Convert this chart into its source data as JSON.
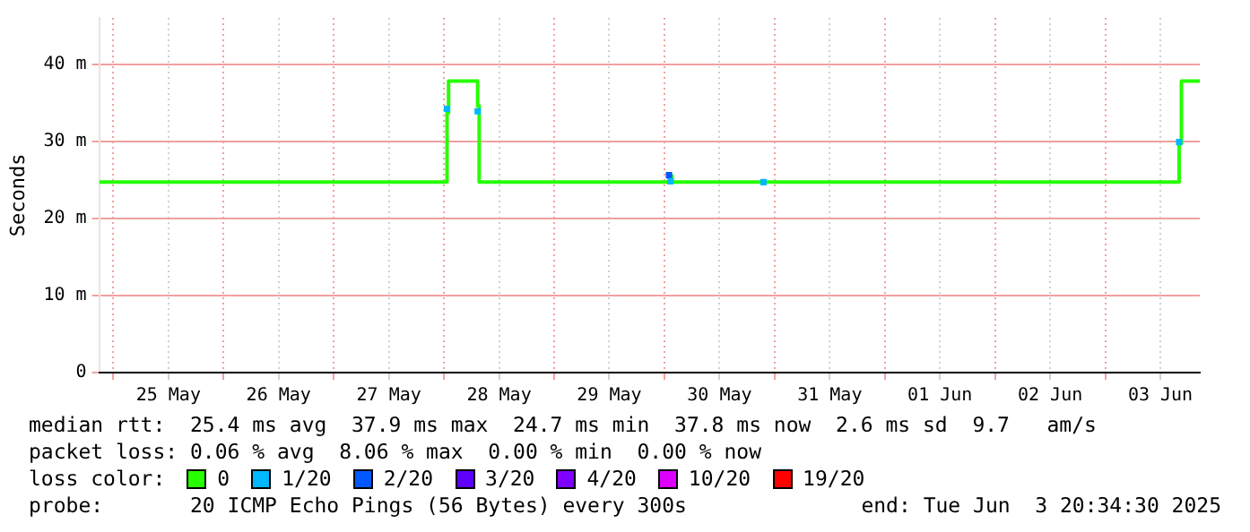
{
  "chart_data": {
    "type": "step",
    "ylabel": "Seconds",
    "legend_title": "loss color:",
    "legend": "bottom",
    "grid": true,
    "xlim": [
      "2025-05-24T20:55",
      "2025-06-03T20:35"
    ],
    "xticks": [
      {
        "value": "2025-05-25T00:00",
        "label": null
      },
      {
        "value": "2025-05-25T12:00",
        "label": "25 May"
      },
      {
        "value": "2025-05-26T00:00",
        "label": null
      },
      {
        "value": "2025-05-26T12:00",
        "label": "26 May"
      },
      {
        "value": "2025-05-27T00:00",
        "label": null
      },
      {
        "value": "2025-05-27T12:00",
        "label": "27 May"
      },
      {
        "value": "2025-05-28T00:00",
        "label": null
      },
      {
        "value": "2025-05-28T12:00",
        "label": "28 May"
      },
      {
        "value": "2025-05-29T00:00",
        "label": null
      },
      {
        "value": "2025-05-29T12:00",
        "label": "29 May"
      },
      {
        "value": "2025-05-30T00:00",
        "label": null
      },
      {
        "value": "2025-05-30T12:00",
        "label": "30 May"
      },
      {
        "value": "2025-05-31T00:00",
        "label": null
      },
      {
        "value": "2025-05-31T12:00",
        "label": "31 May"
      },
      {
        "value": "2025-06-01T00:00",
        "label": null
      },
      {
        "value": "2025-06-01T12:00",
        "label": "01 Jun"
      },
      {
        "value": "2025-06-02T00:00",
        "label": null
      },
      {
        "value": "2025-06-02T12:00",
        "label": "02 Jun"
      },
      {
        "value": "2025-06-03T00:00",
        "label": null
      },
      {
        "value": "2025-06-03T12:00",
        "label": "03 Jun"
      }
    ],
    "ylim": [
      0,
      46
    ],
    "yticks": [
      0,
      {
        "value": 10,
        "label": "10 m"
      },
      {
        "value": 20,
        "label": "20 m"
      },
      {
        "value": 30,
        "label": "30 m"
      },
      {
        "value": 40,
        "label": "40 m"
      }
    ],
    "series": [
      {
        "name": "0",
        "color": "#26ff00",
        "x": [
          "2025-05-24T20:55",
          "2025-05-28T00:40",
          "2025-05-28T01:00",
          "2025-05-28T07:20",
          "2025-05-28T07:40",
          "2025-05-30T01:00",
          "2025-05-30T01:20",
          "2025-05-30T01:40",
          "2025-06-03T16:05",
          "2025-06-03T16:35",
          "2025-06-03T20:35"
        ],
        "values": [
          24.7,
          33.7,
          37.8,
          34.6,
          24.7,
          24.7,
          25.5,
          24.7,
          29.7,
          37.8,
          37.8
        ]
      },
      {
        "name": "1/20",
        "type": "scatter",
        "marker": "square",
        "color": "#00b8ff",
        "x": [
          "2025-05-28T00:40",
          "2025-05-28T07:20",
          "2025-05-30T01:20",
          "2025-05-30T21:35",
          "2025-06-03T16:05"
        ],
        "values": [
          34.2,
          33.9,
          24.8,
          24.7,
          29.9
        ]
      },
      {
        "name": "2/20",
        "type": "scatter",
        "marker": "square",
        "color": "#0059ff",
        "x": [
          "2025-05-30T01:00"
        ],
        "values": [
          25.6
        ]
      },
      {
        "name": "3/20",
        "type": "scatter",
        "marker": "square",
        "color": "#5e00ff"
      },
      {
        "name": "4/20",
        "type": "scatter",
        "marker": "square",
        "color": "#7e00ff"
      },
      {
        "name": "10/20",
        "type": "scatter",
        "marker": "square",
        "color": "#dd00ff"
      },
      {
        "name": "19/20",
        "type": "scatter",
        "marker": "square",
        "color": "#ff0000"
      }
    ],
    "annotations": [
      "median rtt:  25.4 ms avg  37.9 ms max  24.7 ms min  37.8 ms now  2.6 ms sd  9.7   am/s",
      "packet loss: 0.06 % avg  8.06 % max  0.00 % min  0.00 % now",
      "probe:       20 ICMP Echo Pings (56 Bytes) every 300s",
      "end: Tue Jun  3 20:34:30 2025"
    ]
  }
}
